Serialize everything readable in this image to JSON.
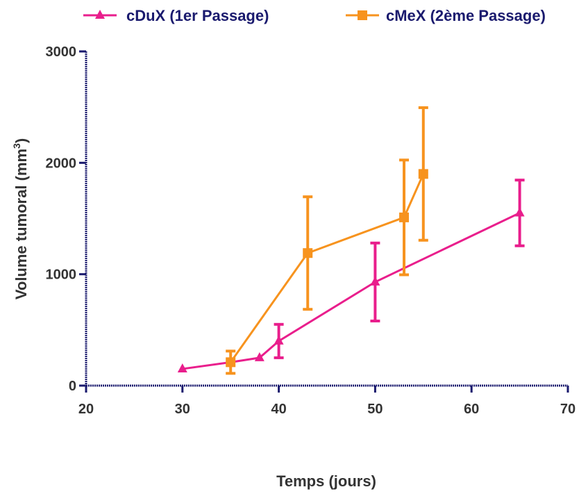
{
  "chart_data": {
    "type": "line",
    "xlabel": "Temps (jours)",
    "ylabel_main": "Volume tumoral (mm",
    "ylabel_sup": "3",
    "ylabel_close": ")",
    "xlim": [
      20,
      70
    ],
    "ylim": [
      0,
      3000
    ],
    "x_ticks": [
      20,
      30,
      40,
      50,
      60,
      70
    ],
    "y_ticks": [
      0,
      1000,
      2000,
      3000
    ],
    "grid": false,
    "legend_position": "top",
    "axis_color": "#1a1a6e",
    "series": [
      {
        "name": "cDuX (1er Passage)",
        "color": "#e91e8c",
        "marker": "triangle",
        "points": [
          {
            "x": 30,
            "y": 150
          },
          {
            "x": 35,
            "y": 210
          },
          {
            "x": 38,
            "y": 250
          },
          {
            "x": 40,
            "y": 400,
            "err": 150
          },
          {
            "x": 50,
            "y": 930,
            "err": 350
          },
          {
            "x": 65,
            "y": 1550,
            "err": 295
          }
        ]
      },
      {
        "name": "cMeX (2ème Passage)",
        "color": "#f7931e",
        "marker": "square",
        "points": [
          {
            "x": 35,
            "y": 210,
            "err": 100
          },
          {
            "x": 43,
            "y": 1190,
            "err": 505
          },
          {
            "x": 53,
            "y": 1510,
            "err": 515
          },
          {
            "x": 55,
            "y": 1900,
            "err": 595
          }
        ]
      }
    ]
  }
}
